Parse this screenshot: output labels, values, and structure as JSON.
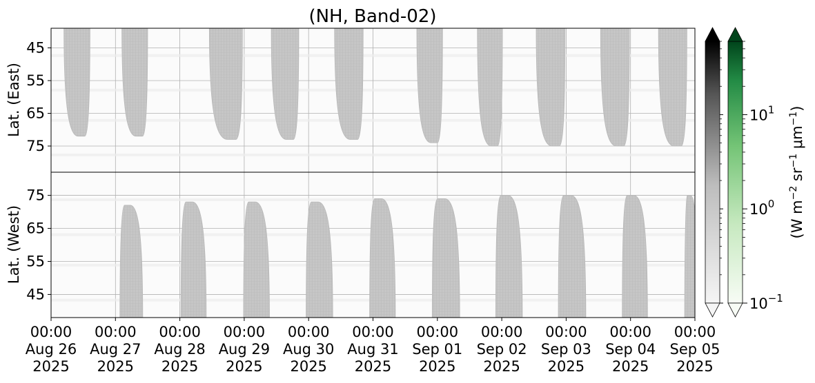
{
  "chart_data": {
    "type": "heatmap",
    "title": "(NH, Band-02)",
    "x_ticks": [
      {
        "time": "00:00",
        "date": "Aug 26",
        "year": "2025"
      },
      {
        "time": "00:00",
        "date": "Aug 27",
        "year": "2025"
      },
      {
        "time": "00:00",
        "date": "Aug 28",
        "year": "2025"
      },
      {
        "time": "00:00",
        "date": "Aug 29",
        "year": "2025"
      },
      {
        "time": "00:00",
        "date": "Aug 30",
        "year": "2025"
      },
      {
        "time": "00:00",
        "date": "Aug 31",
        "year": "2025"
      },
      {
        "time": "00:00",
        "date": "Sep 01",
        "year": "2025"
      },
      {
        "time": "00:00",
        "date": "Sep 02",
        "year": "2025"
      },
      {
        "time": "00:00",
        "date": "Sep 03",
        "year": "2025"
      },
      {
        "time": "00:00",
        "date": "Sep 04",
        "year": "2025"
      },
      {
        "time": "00:00",
        "date": "Sep 05",
        "year": "2025"
      }
    ],
    "xlim": [
      "2025-08-26T00:00",
      "2025-09-05T00:00"
    ],
    "panels": [
      {
        "name": "east",
        "ylabel": "Lat. (East)",
        "yticks": [
          45,
          55,
          65,
          75
        ],
        "ylim": [
          39,
          83
        ],
        "y_inverted": true,
        "grid": true,
        "swaths": [
          {
            "start": "2025-08-26T04:48",
            "end": "2025-08-26T14:30",
            "edge_lat": 72
          },
          {
            "start": "2025-08-27T02:24",
            "end": "2025-08-27T12:00",
            "edge_lat": 72
          },
          {
            "start": "2025-08-28T11:00",
            "end": "2025-08-28T23:20",
            "edge_lat": 73
          },
          {
            "start": "2025-08-29T10:05",
            "end": "2025-08-29T20:20",
            "edge_lat": 73
          },
          {
            "start": "2025-08-30T09:40",
            "end": "2025-08-30T20:20",
            "edge_lat": 73
          },
          {
            "start": "2025-08-31T16:20",
            "end": "2025-09-01T01:55",
            "edge_lat": 74
          },
          {
            "start": "2025-09-01T14:55",
            "end": "2025-09-02T00:15",
            "edge_lat": 75
          },
          {
            "start": "2025-09-02T12:50",
            "end": "2025-09-02T23:35",
            "edge_lat": 75
          },
          {
            "start": "2025-09-03T12:50",
            "end": "2025-09-03T23:35",
            "edge_lat": 75
          },
          {
            "start": "2025-09-04T10:25",
            "end": "2025-09-04T21:00",
            "edge_lat": 75
          }
        ]
      },
      {
        "name": "west",
        "ylabel": "Lat. (West)",
        "yticks": [
          45,
          55,
          65,
          75
        ],
        "ylim": [
          38,
          82
        ],
        "y_inverted": false,
        "grid": true,
        "swaths": [
          {
            "start": "2025-08-27T01:40",
            "end": "2025-08-27T10:10",
            "edge_lat": 72
          },
          {
            "start": "2025-08-28T00:25",
            "end": "2025-08-28T09:50",
            "edge_lat": 73
          },
          {
            "start": "2025-08-28T23:45",
            "end": "2025-08-29T09:25",
            "edge_lat": 73
          },
          {
            "start": "2025-08-29T23:05",
            "end": "2025-08-30T09:00",
            "edge_lat": 73
          },
          {
            "start": "2025-08-30T22:45",
            "end": "2025-08-31T08:20",
            "edge_lat": 74
          },
          {
            "start": "2025-08-31T22:05",
            "end": "2025-09-01T08:20",
            "edge_lat": 74
          },
          {
            "start": "2025-09-01T21:45",
            "end": "2025-09-02T07:40",
            "edge_lat": 75
          },
          {
            "start": "2025-09-02T21:05",
            "end": "2025-09-03T07:20",
            "edge_lat": 75
          },
          {
            "start": "2025-09-03T20:55",
            "end": "2025-09-04T06:20",
            "edge_lat": 75
          },
          {
            "start": "2025-09-04T20:10",
            "end": "2025-09-05T01:00",
            "edge_lat": 75
          }
        ]
      }
    ],
    "swath_radiance": 1.0,
    "background_radiance": 0.15,
    "colorbars": [
      {
        "name": "gray",
        "colors": [
          "#f5f5f5",
          "#000000"
        ],
        "extend": "both"
      },
      {
        "name": "green",
        "colors": [
          "#f7fcf5",
          "#00441b"
        ],
        "extend": "both"
      }
    ],
    "colorbar_scale": "log",
    "colorbar_range": [
      0.1,
      60
    ],
    "colorbar_ticks": [
      {
        "value": 0.1,
        "label": "10",
        "exp": "−1"
      },
      {
        "value": 1,
        "label": "10",
        "exp": "0"
      },
      {
        "value": 10,
        "label": "10",
        "exp": "1"
      }
    ],
    "colorbar_label": {
      "pre": "(W m",
      "e1": "−2",
      "mid": " sr",
      "e2": "−1",
      "mu": " μm",
      "e3": "−1",
      "post": ")"
    }
  }
}
